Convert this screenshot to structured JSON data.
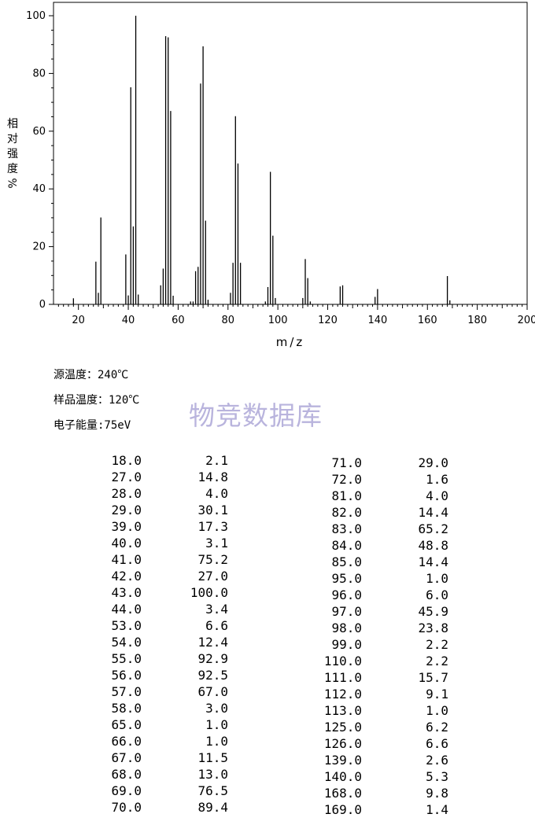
{
  "chart_data": {
    "type": "bar",
    "title": "",
    "xlabel": "m/z",
    "ylabel": "相对强度 %",
    "xlim": [
      10,
      200
    ],
    "ylim": [
      0,
      100
    ],
    "xticks": [
      20,
      40,
      60,
      80,
      100,
      120,
      140,
      160,
      180,
      200
    ],
    "yticks": [
      0,
      20,
      40,
      60,
      80,
      100
    ],
    "grid": false,
    "x": [
      18,
      27,
      28,
      29,
      39,
      40,
      41,
      42,
      43,
      44,
      53,
      54,
      55,
      56,
      57,
      58,
      65,
      66,
      67,
      68,
      69,
      70,
      71,
      72,
      81,
      82,
      83,
      84,
      85,
      95,
      96,
      97,
      98,
      99,
      110,
      111,
      112,
      113,
      125,
      126,
      139,
      140,
      168,
      169
    ],
    "values": [
      2.1,
      14.8,
      4.0,
      30.1,
      17.3,
      3.1,
      75.2,
      27.0,
      100.0,
      3.4,
      6.6,
      12.4,
      92.9,
      92.5,
      67.0,
      3.0,
      1.0,
      1.0,
      11.5,
      13.0,
      76.5,
      89.4,
      29.0,
      1.6,
      4.0,
      14.4,
      65.2,
      48.8,
      14.4,
      1.0,
      6.0,
      45.9,
      23.8,
      2.2,
      2.2,
      15.7,
      9.1,
      1.0,
      6.2,
      6.6,
      2.6,
      5.3,
      9.8,
      1.4
    ]
  },
  "ylabel_chars": [
    "相",
    "对",
    "强",
    "度",
    "%"
  ],
  "conditions": {
    "source_temp": "源温度：240℃",
    "sample_temp": "样品温度：120℃",
    "electron_energy": "电子能量:75eV"
  },
  "watermark": "物竞数据库",
  "peak_table": {
    "left": [
      [
        "18.0",
        "2.1"
      ],
      [
        "27.0",
        "14.8"
      ],
      [
        "28.0",
        "4.0"
      ],
      [
        "29.0",
        "30.1"
      ],
      [
        "39.0",
        "17.3"
      ],
      [
        "40.0",
        "3.1"
      ],
      [
        "41.0",
        "75.2"
      ],
      [
        "42.0",
        "27.0"
      ],
      [
        "43.0",
        "100.0"
      ],
      [
        "44.0",
        "3.4"
      ],
      [
        "53.0",
        "6.6"
      ],
      [
        "54.0",
        "12.4"
      ],
      [
        "55.0",
        "92.9"
      ],
      [
        "56.0",
        "92.5"
      ],
      [
        "57.0",
        "67.0"
      ],
      [
        "58.0",
        "3.0"
      ],
      [
        "65.0",
        "1.0"
      ],
      [
        "66.0",
        "1.0"
      ],
      [
        "67.0",
        "11.5"
      ],
      [
        "68.0",
        "13.0"
      ],
      [
        "69.0",
        "76.5"
      ],
      [
        "70.0",
        "89.4"
      ]
    ],
    "right": [
      [
        "71.0",
        "29.0"
      ],
      [
        "72.0",
        "1.6"
      ],
      [
        "81.0",
        "4.0"
      ],
      [
        "82.0",
        "14.4"
      ],
      [
        "83.0",
        "65.2"
      ],
      [
        "84.0",
        "48.8"
      ],
      [
        "85.0",
        "14.4"
      ],
      [
        "95.0",
        "1.0"
      ],
      [
        "96.0",
        "6.0"
      ],
      [
        "97.0",
        "45.9"
      ],
      [
        "98.0",
        "23.8"
      ],
      [
        "99.0",
        "2.2"
      ],
      [
        "110.0",
        "2.2"
      ],
      [
        "111.0",
        "15.7"
      ],
      [
        "112.0",
        "9.1"
      ],
      [
        "113.0",
        "1.0"
      ],
      [
        "125.0",
        "6.2"
      ],
      [
        "126.0",
        "6.6"
      ],
      [
        "139.0",
        "2.6"
      ],
      [
        "140.0",
        "5.3"
      ],
      [
        "168.0",
        "9.8"
      ],
      [
        "169.0",
        "1.4"
      ]
    ]
  }
}
